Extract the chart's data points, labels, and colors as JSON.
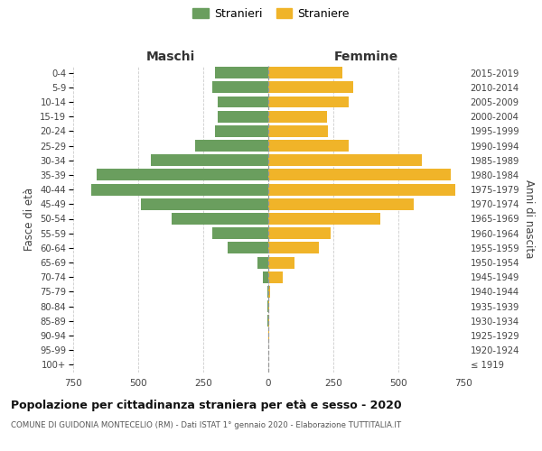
{
  "age_groups": [
    "100+",
    "95-99",
    "90-94",
    "85-89",
    "80-84",
    "75-79",
    "70-74",
    "65-69",
    "60-64",
    "55-59",
    "50-54",
    "45-49",
    "40-44",
    "35-39",
    "30-34",
    "25-29",
    "20-24",
    "15-19",
    "10-14",
    "5-9",
    "0-4"
  ],
  "birth_years": [
    "≤ 1919",
    "1920-1924",
    "1925-1929",
    "1930-1934",
    "1935-1939",
    "1940-1944",
    "1945-1949",
    "1950-1954",
    "1955-1959",
    "1960-1964",
    "1965-1969",
    "1970-1974",
    "1975-1979",
    "1980-1984",
    "1985-1989",
    "1990-1994",
    "1995-1999",
    "2000-2004",
    "2005-2009",
    "2010-2014",
    "2015-2019"
  ],
  "maschi": [
    0,
    0,
    0,
    2,
    3,
    5,
    20,
    40,
    155,
    215,
    370,
    490,
    680,
    660,
    450,
    280,
    205,
    195,
    195,
    215,
    205
  ],
  "femmine": [
    0,
    0,
    2,
    3,
    5,
    8,
    55,
    100,
    195,
    240,
    430,
    560,
    720,
    700,
    590,
    310,
    230,
    225,
    310,
    325,
    285
  ],
  "male_color": "#6a9e5e",
  "female_color": "#f0b429",
  "background_color": "#ffffff",
  "grid_color": "#cccccc",
  "title": "Popolazione per cittadinanza straniera per età e sesso - 2020",
  "subtitle": "COMUNE DI GUIDONIA MONTECELIO (RM) - Dati ISTAT 1° gennaio 2020 - Elaborazione TUTTITALIA.IT",
  "ylabel_left": "Fasce di età",
  "ylabel_right": "Anni di nascita",
  "xlabel_left": "Maschi",
  "xlabel_right": "Femmine",
  "legend_stranieri": "Stranieri",
  "legend_straniere": "Straniere",
  "xlim": 750,
  "bar_height": 0.8
}
